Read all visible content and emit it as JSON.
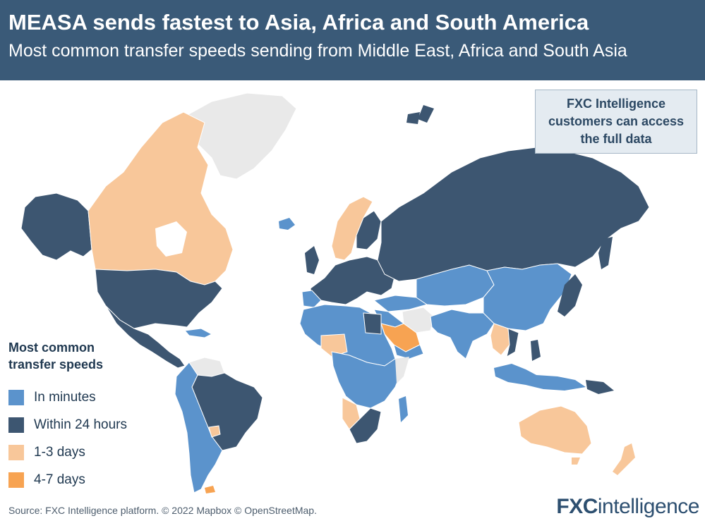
{
  "header": {
    "title": "MEASA sends fastest to Asia, Africa and South America",
    "subtitle": "Most common transfer speeds sending from Middle East, Africa and South Asia"
  },
  "callout": {
    "text": "FXC Intelligence customers can access the full data"
  },
  "legend": {
    "title": "Most common transfer speeds",
    "items": [
      {
        "label": "In minutes",
        "color": "#5b93cc"
      },
      {
        "label": "Within 24 hours",
        "color": "#3d5671"
      },
      {
        "label": "1-3 days",
        "color": "#f8c79a"
      },
      {
        "label": "4-7 days",
        "color": "#f7a352"
      }
    ]
  },
  "colors": {
    "header_bg": "#3a5a78",
    "no_data": "#e9e9e9",
    "minutes": "#5b93cc",
    "within_24h": "#3d5671",
    "days_1_3": "#f8c79a",
    "days_4_7": "#f7a352"
  },
  "footer": {
    "source": "Source: FXC Intelligence platform. © 2022 Mapbox © OpenStreetMap.",
    "logo_fx": "FXC",
    "logo_intel": "intelligence"
  }
}
